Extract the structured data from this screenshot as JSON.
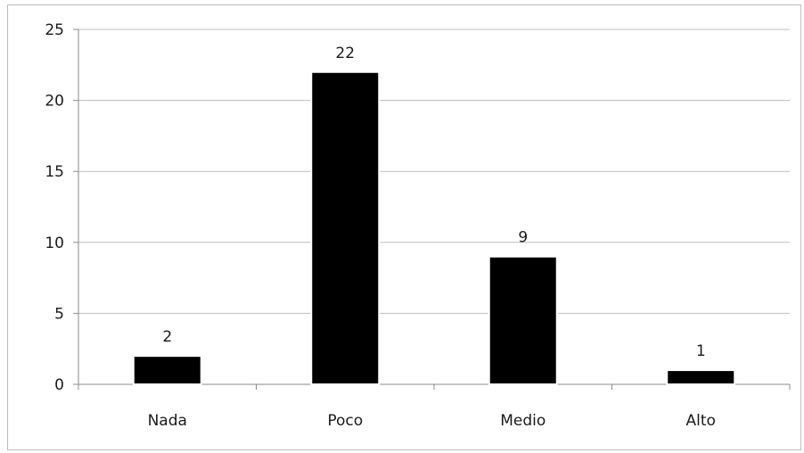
{
  "chart_data": {
    "type": "bar",
    "categories": [
      "Nada",
      "Poco",
      "Medio",
      "Alto"
    ],
    "values": [
      2,
      22,
      9,
      1
    ],
    "data_labels": [
      "2",
      "22",
      "9",
      "1"
    ],
    "title": "",
    "xlabel": "",
    "ylabel": "",
    "ylim": [
      0,
      25
    ],
    "yticks": [
      0,
      5,
      10,
      15,
      20,
      25
    ],
    "ytick_labels": [
      "0",
      "5",
      "10",
      "15",
      "20",
      "25"
    ],
    "grid": true,
    "legend": "none",
    "bar_color": "#000000"
  }
}
